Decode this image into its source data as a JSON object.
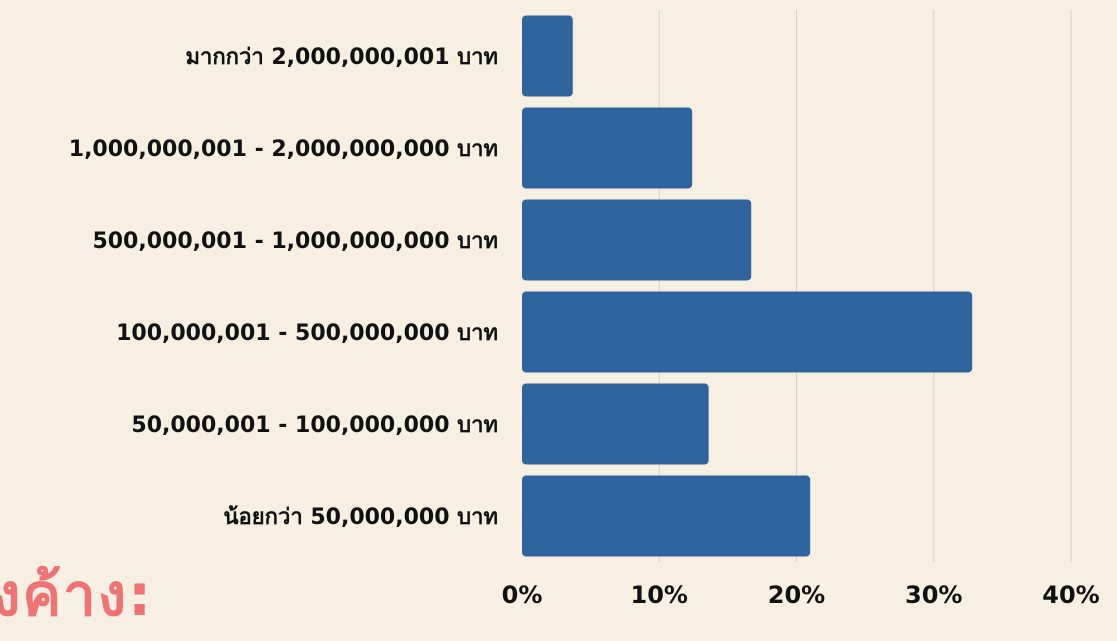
{
  "background_fragment": "งค้าง:",
  "chart_data": {
    "type": "bar",
    "orientation": "horizontal",
    "categories": [
      "มากกว่า 2,000,000,001 บาท",
      "1,000,000,001 - 2,000,000,000 บาท",
      "500,000,001 - 1,000,000,000 บาท",
      "100,000,001 - 500,000,000 บาท",
      "50,000,001 - 100,000,000 บาท",
      "น้อยกว่า 50,000,000 บาท"
    ],
    "values": [
      3.7,
      12.4,
      16.7,
      32.8,
      13.6,
      21.0
    ],
    "xlim": [
      0,
      40
    ],
    "xticks": [
      "0%",
      "10%",
      "20%",
      "30%",
      "40%"
    ],
    "grid": true,
    "colors": {
      "bar": "#30649f",
      "background": "#f6efe2",
      "fragment": "#f07272"
    }
  }
}
